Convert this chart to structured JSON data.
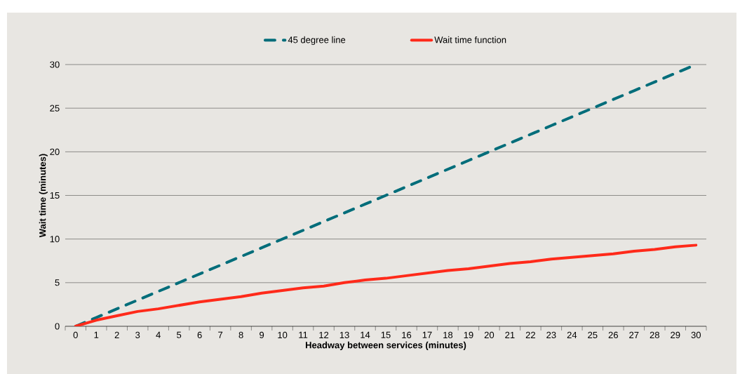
{
  "chart_data": {
    "type": "line",
    "xlabel": "Headway between services (minutes)",
    "ylabel": "Wait time (minutes)",
    "categories": [
      "0",
      "1",
      "2",
      "3",
      "4",
      "5",
      "6",
      "7",
      "8",
      "9",
      "10",
      "11",
      "12",
      "13",
      "14",
      "15",
      "16",
      "17",
      "18",
      "19",
      "20",
      "21",
      "22",
      "23",
      "24",
      "25",
      "26",
      "27",
      "28",
      "29",
      "30"
    ],
    "series": [
      {
        "name": "45 degree line",
        "color": "#006d7a",
        "line_style": "dashed",
        "values": [
          0,
          1,
          2,
          3,
          4,
          5,
          6,
          7,
          8,
          9,
          10,
          11,
          12,
          13,
          14,
          15,
          16,
          17,
          18,
          19,
          20,
          21,
          22,
          23,
          24,
          25,
          26,
          27,
          28,
          29,
          30
        ]
      },
      {
        "name": "Wait time function",
        "color": "#ff2a1a",
        "line_style": "solid",
        "values": [
          0,
          0.7,
          1.2,
          1.7,
          2.0,
          2.4,
          2.8,
          3.1,
          3.4,
          3.8,
          4.1,
          4.4,
          4.6,
          5.0,
          5.3,
          5.5,
          5.8,
          6.1,
          6.4,
          6.6,
          6.9,
          7.2,
          7.4,
          7.7,
          7.9,
          8.1,
          8.3,
          8.6,
          8.8,
          9.1,
          9.3
        ]
      }
    ],
    "ylim": [
      0,
      30
    ],
    "yticks": [
      0,
      5,
      10,
      15,
      20,
      25,
      30
    ],
    "grid": "y",
    "legend": "top",
    "marker": "none"
  }
}
